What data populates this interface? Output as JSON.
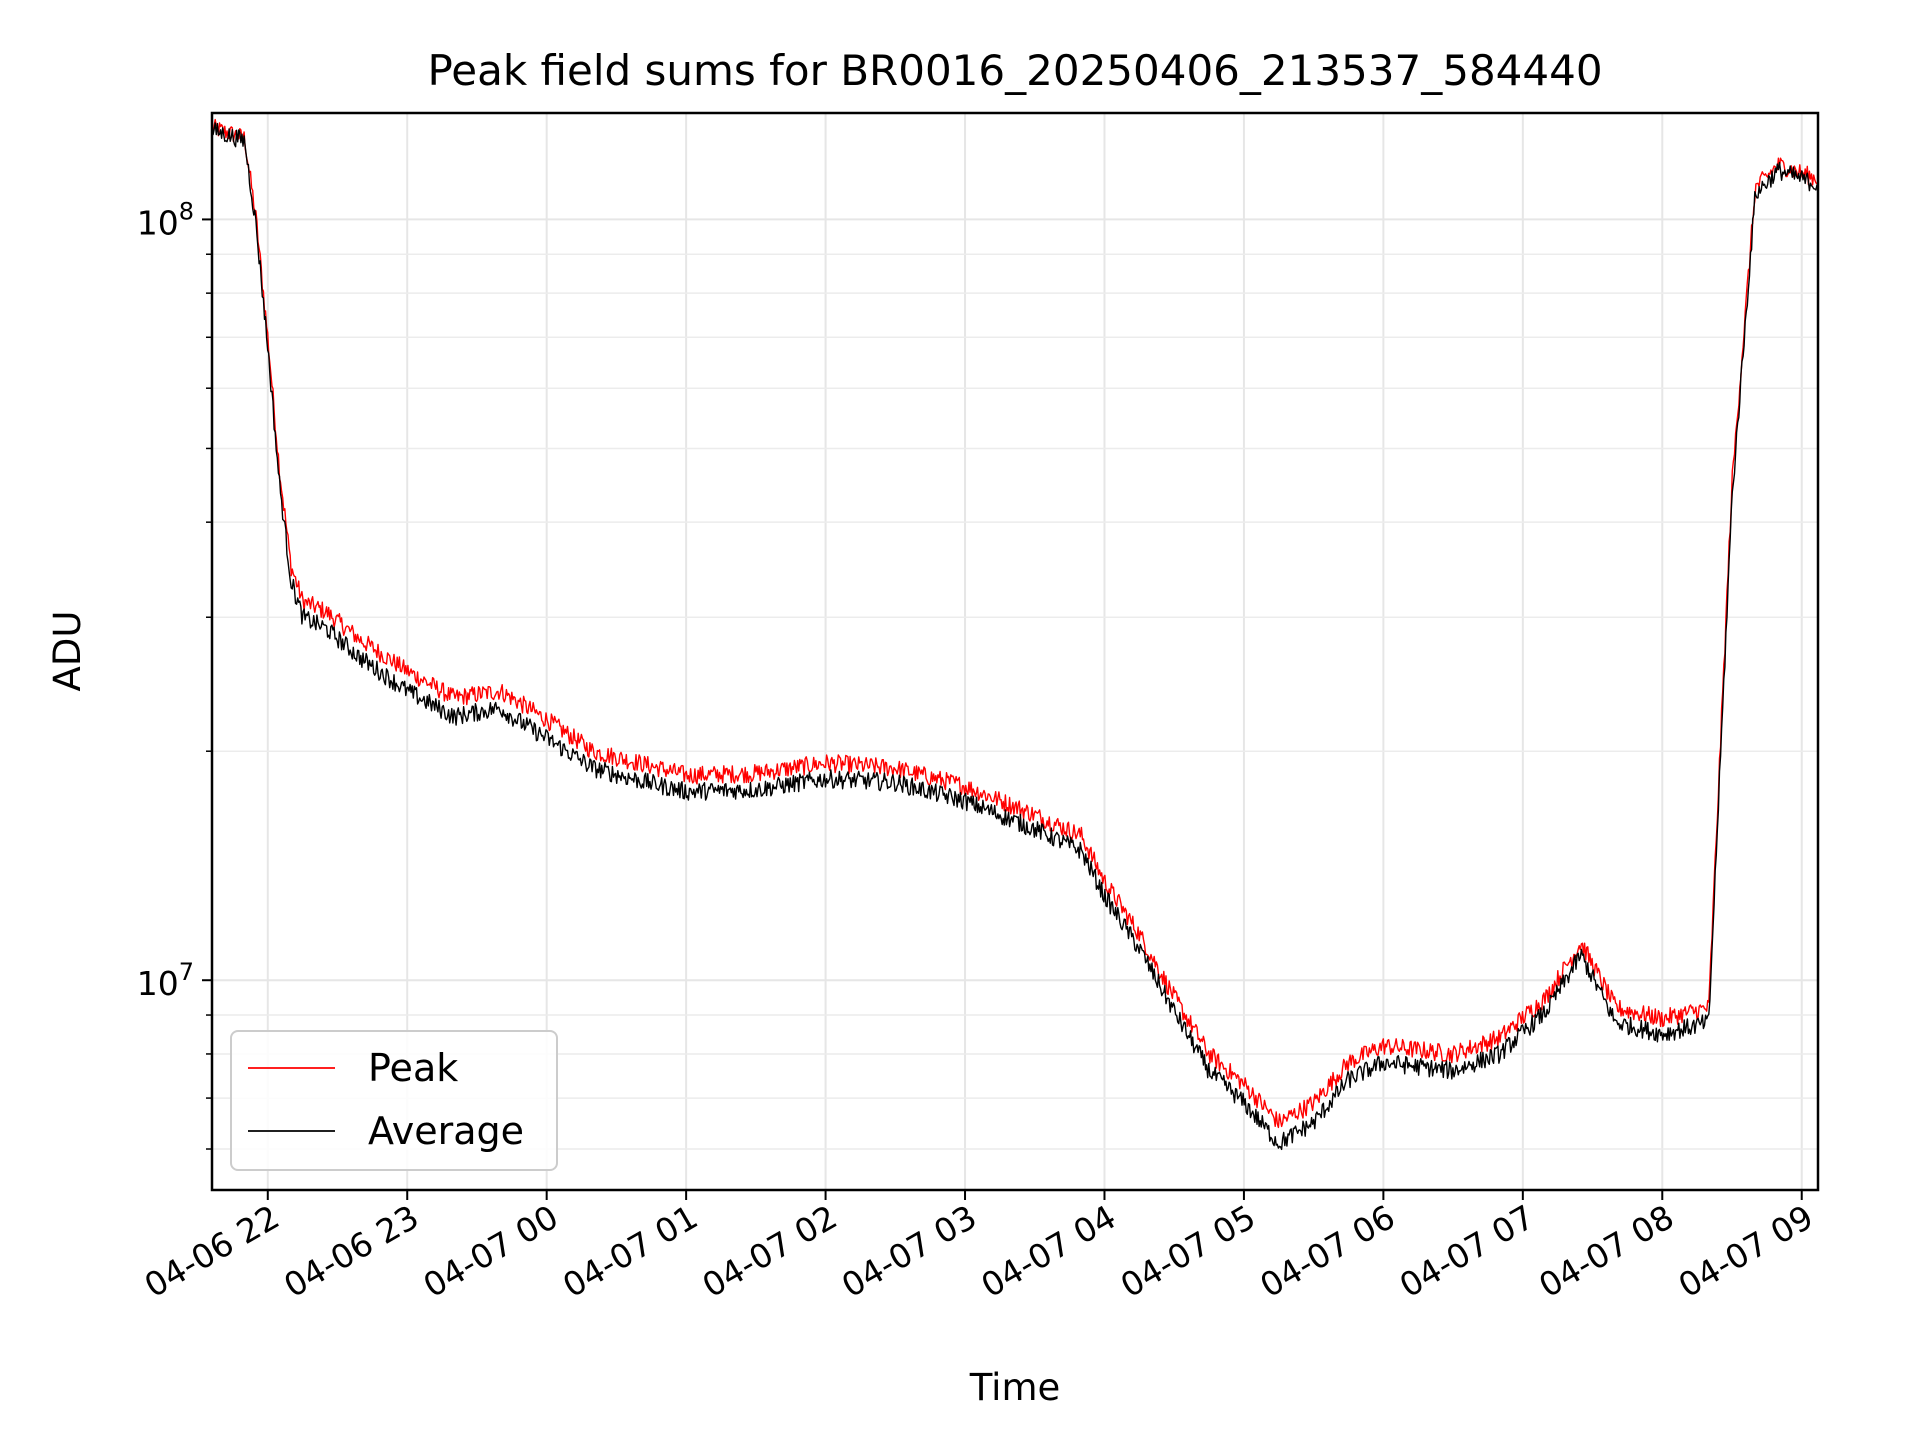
{
  "chart_data": {
    "type": "line",
    "title": "Peak field sums for BR0016_20250406_213537_584440",
    "xlabel": "Time",
    "ylabel": "ADU",
    "yscale": "log",
    "ylim": [
      5300000,
      138000000
    ],
    "xlim": [
      "2025-04-06 21:36",
      "2025-04-07 09:07"
    ],
    "x_ticks": [
      "04-06 22",
      "04-06 23",
      "04-07 00",
      "04-07 01",
      "04-07 02",
      "04-07 03",
      "04-07 04",
      "04-07 05",
      "04-07 06",
      "04-07 07",
      "04-07 08",
      "04-07 09"
    ],
    "y_ticks": [
      {
        "base": "10",
        "exp": "7",
        "value": 10000000
      },
      {
        "base": "10",
        "exp": "8",
        "value": 100000000
      }
    ],
    "grid": true,
    "legend_position": "lower left",
    "series": [
      {
        "name": "Peak",
        "color": "#ff0000",
        "x": [
          "2025-04-06 21:36",
          "2025-04-06 21:50",
          "2025-04-06 21:55",
          "2025-04-06 22:00",
          "2025-04-06 22:05",
          "2025-04-06 22:10",
          "2025-04-06 22:15",
          "2025-04-06 22:25",
          "2025-04-06 22:40",
          "2025-04-06 23:00",
          "2025-04-06 23:20",
          "2025-04-06 23:40",
          "2025-04-06 23:45",
          "2025-04-07 00:00",
          "2025-04-07 00:20",
          "2025-04-07 00:40",
          "2025-04-07 01:00",
          "2025-04-07 01:30",
          "2025-04-07 02:00",
          "2025-04-07 02:30",
          "2025-04-07 03:00",
          "2025-04-07 03:30",
          "2025-04-07 03:50",
          "2025-04-07 04:00",
          "2025-04-07 04:15",
          "2025-04-07 04:30",
          "2025-04-07 04:45",
          "2025-04-07 05:00",
          "2025-04-07 05:15",
          "2025-04-07 05:30",
          "2025-04-07 05:45",
          "2025-04-07 06:00",
          "2025-04-07 06:30",
          "2025-04-07 06:50",
          "2025-04-07 07:10",
          "2025-04-07 07:25",
          "2025-04-07 07:40",
          "2025-04-07 08:00",
          "2025-04-07 08:20",
          "2025-04-07 08:30",
          "2025-04-07 08:40",
          "2025-04-07 08:50",
          "2025-04-07 09:07"
        ],
        "y": [
          132000000,
          128000000,
          100000000,
          70000000,
          47000000,
          35000000,
          31500000,
          30500000,
          28000000,
          25500000,
          23500000,
          24000000,
          23500000,
          22000000,
          20000000,
          19300000,
          18600000,
          18700000,
          19300000,
          19000000,
          18000000,
          16500000,
          15500000,
          13500000,
          11500000,
          9500000,
          8000000,
          7300000,
          6500000,
          6900000,
          7800000,
          8200000,
          8000000,
          8400000,
          9500000,
          11200000,
          9200000,
          8900000,
          9200000,
          45000000,
          110000000,
          118000000,
          113000000
        ]
      },
      {
        "name": "Average",
        "color": "#000000",
        "x": [
          "2025-04-06 21:36",
          "2025-04-06 21:50",
          "2025-04-06 21:55",
          "2025-04-06 22:00",
          "2025-04-06 22:05",
          "2025-04-06 22:10",
          "2025-04-06 22:15",
          "2025-04-06 22:25",
          "2025-04-06 22:40",
          "2025-04-06 23:00",
          "2025-04-06 23:20",
          "2025-04-06 23:40",
          "2025-04-06 23:45",
          "2025-04-07 00:00",
          "2025-04-07 00:20",
          "2025-04-07 00:40",
          "2025-04-07 01:00",
          "2025-04-07 01:30",
          "2025-04-07 02:00",
          "2025-04-07 02:30",
          "2025-04-07 03:00",
          "2025-04-07 03:30",
          "2025-04-07 03:50",
          "2025-04-07 04:00",
          "2025-04-07 04:15",
          "2025-04-07 04:30",
          "2025-04-07 04:45",
          "2025-04-07 05:00",
          "2025-04-07 05:15",
          "2025-04-07 05:30",
          "2025-04-07 05:45",
          "2025-04-07 06:00",
          "2025-04-07 06:30",
          "2025-04-07 06:50",
          "2025-04-07 07:10",
          "2025-04-07 07:25",
          "2025-04-07 07:40",
          "2025-04-07 08:00",
          "2025-04-07 08:20",
          "2025-04-07 08:30",
          "2025-04-07 08:40",
          "2025-04-07 08:50",
          "2025-04-07 09:07"
        ],
        "y": [
          131000000,
          127000000,
          98000000,
          68000000,
          45000000,
          33500000,
          30000000,
          29000000,
          26500000,
          24000000,
          22200000,
          22800000,
          22200000,
          20800000,
          19000000,
          18300000,
          17700000,
          17800000,
          18400000,
          18200000,
          17200000,
          15800000,
          14800000,
          12900000,
          11000000,
          9100000,
          7600000,
          6900000,
          6100000,
          6500000,
          7400000,
          7800000,
          7600000,
          8000000,
          9100000,
          10800000,
          8800000,
          8500000,
          8800000,
          43000000,
          108000000,
          116000000,
          111000000
        ]
      }
    ]
  }
}
